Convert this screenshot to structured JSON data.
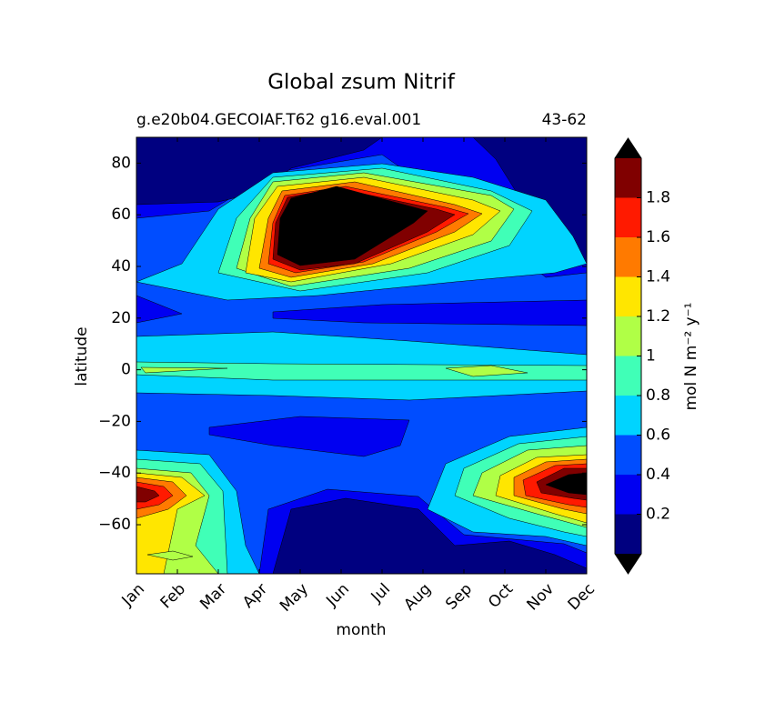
{
  "chart_data": {
    "type": "contour",
    "title": "Global zsum Nitrif",
    "subtitle_left": "g.e20b04.GECOIAF.T62 g16.eval.001",
    "subtitle_right": "43-62",
    "xlabel": "month",
    "ylabel": "latitude",
    "categories": [
      "Jan",
      "Feb",
      "Mar",
      "Apr",
      "May",
      "Jun",
      "Jul",
      "Aug",
      "Sep",
      "Oct",
      "Nov",
      "Dec"
    ],
    "ylim": [
      -79,
      90
    ],
    "yticks": [
      {
        "value": -60,
        "label": "−60"
      },
      {
        "value": -40,
        "label": "−40"
      },
      {
        "value": -20,
        "label": "−20"
      },
      0,
      20,
      40,
      60,
      80
    ],
    "colorbar": {
      "label": "mol N m⁻² y⁻¹",
      "levels": [
        0,
        0.2,
        0.4,
        0.6,
        0.8,
        1.0,
        1.2,
        1.4,
        1.6,
        1.8,
        2.0
      ],
      "colors": [
        "#000080",
        "#0000f1",
        "#004dff",
        "#00d4ff",
        "#40ffb7",
        "#b0ff46",
        "#ffe600",
        "#ff7a00",
        "#ff1a00",
        "#800000"
      ],
      "over_color": "#000000",
      "under_color": "#000000",
      "ticks": [
        0.2,
        0.4,
        0.6,
        0.8,
        1,
        1.2,
        1.4,
        1.6,
        1.8
      ]
    }
  }
}
